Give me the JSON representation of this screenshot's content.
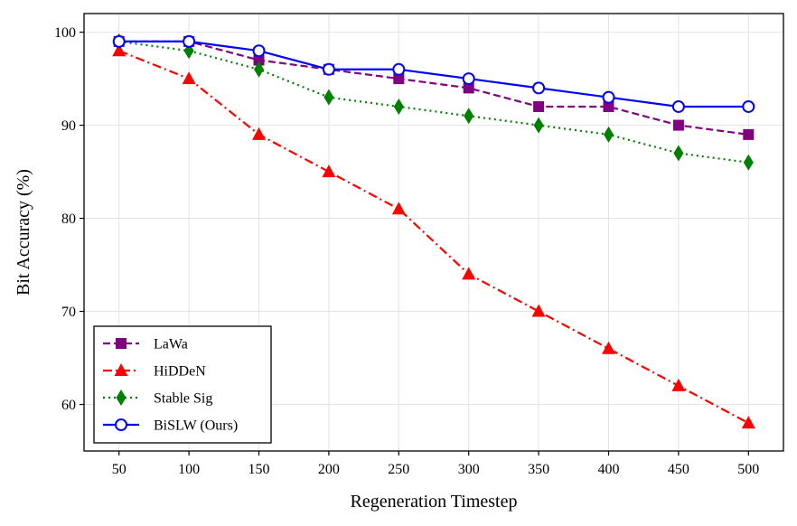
{
  "chart_data": {
    "type": "line",
    "xlabel": "Regeneration Timestep",
    "ylabel": "Bit Accuracy (%)",
    "x": [
      50,
      100,
      150,
      200,
      250,
      300,
      350,
      400,
      450,
      500
    ],
    "xticks": [
      "50",
      "100",
      "150",
      "200",
      "250",
      "300",
      "350",
      "400",
      "450",
      "500"
    ],
    "yticks": [
      "60",
      "70",
      "80",
      "90",
      "100"
    ],
    "xlim": [
      25,
      525
    ],
    "ylim": [
      55,
      102
    ],
    "grid": true,
    "legend_position": "lower-left",
    "series": [
      {
        "name": "LaWa",
        "color": "#800080",
        "marker": "square",
        "linestyle": "dashed",
        "values": [
          99,
          99,
          97,
          96,
          95,
          94,
          92,
          92,
          90,
          89
        ]
      },
      {
        "name": "HiDDeN",
        "color": "#ff0000",
        "marker": "triangle",
        "linestyle": "dashdot",
        "values": [
          98,
          95,
          89,
          85,
          81,
          74,
          70,
          66,
          62,
          58
        ]
      },
      {
        "name": "Stable Sig",
        "color": "#008000",
        "marker": "diamond",
        "linestyle": "dotted",
        "values": [
          99,
          98,
          96,
          93,
          92,
          91,
          90,
          89,
          87,
          86
        ]
      },
      {
        "name": "BiSLW (Ours)",
        "color": "#0000ff",
        "marker": "circle-open",
        "linestyle": "solid",
        "values": [
          99,
          99,
          98,
          96,
          96,
          95,
          94,
          93,
          92,
          92
        ]
      }
    ]
  }
}
